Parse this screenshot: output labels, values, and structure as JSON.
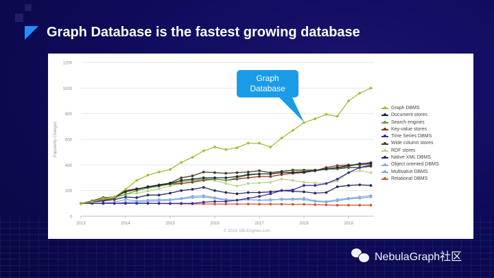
{
  "slide": {
    "title": "Graph Database is the fastest growing database"
  },
  "callout": {
    "line1": "Graph",
    "line2": "Database"
  },
  "watermark": {
    "text": "NebulaGraph社区"
  },
  "chart_data": {
    "type": "line",
    "title": "",
    "xlabel": "",
    "ylabel": "Popularity Changes",
    "credit": "© 2019, DB-Engines.com",
    "xlim": [
      2013,
      2019.55
    ],
    "ylim": [
      0,
      1200
    ],
    "xticks": [
      "2013",
      "2014",
      "2015",
      "2016",
      "2017",
      "2018",
      "2019"
    ],
    "yticks": [
      "0",
      "200",
      "400",
      "600",
      "800",
      "1000",
      "1200"
    ],
    "grid": true,
    "legend_position": "right",
    "x": [
      2013,
      2013.25,
      2013.5,
      2013.75,
      2014,
      2014.25,
      2014.5,
      2014.75,
      2015,
      2015.25,
      2015.5,
      2015.75,
      2016,
      2016.25,
      2016.5,
      2016.75,
      2017,
      2017.25,
      2017.5,
      2017.75,
      2018,
      2018.25,
      2018.5,
      2018.75,
      2019,
      2019.25,
      2019.5
    ],
    "series": [
      {
        "name": "Graph DBMS",
        "color": "#9fc037",
        "values": [
          100,
          115,
          140,
          150,
          210,
          280,
          320,
          345,
          365,
          420,
          460,
          510,
          540,
          520,
          535,
          570,
          570,
          540,
          610,
          670,
          730,
          760,
          795,
          780,
          900,
          960,
          1000
        ]
      },
      {
        "name": "Document stores",
        "color": "#1c2a3c",
        "values": [
          100,
          120,
          145,
          150,
          190,
          210,
          230,
          240,
          255,
          280,
          290,
          300,
          300,
          300,
          310,
          325,
          330,
          330,
          340,
          340,
          345,
          355,
          370,
          380,
          395,
          410,
          415
        ]
      },
      {
        "name": "Search engines",
        "color": "#5fa043",
        "values": [
          100,
          115,
          135,
          150,
          170,
          200,
          220,
          235,
          250,
          270,
          280,
          290,
          290,
          280,
          300,
          320,
          330,
          330,
          340,
          345,
          350,
          355,
          365,
          375,
          390,
          405,
          420
        ]
      },
      {
        "name": "Key-value stores",
        "color": "#8b2f1f",
        "values": [
          100,
          110,
          125,
          140,
          200,
          215,
          225,
          240,
          250,
          255,
          265,
          280,
          290,
          280,
          290,
          300,
          310,
          310,
          325,
          335,
          340,
          355,
          380,
          395,
          400,
          400,
          410
        ]
      },
      {
        "name": "Time Series DBMS",
        "color": "#3b2b9c",
        "values": [
          100,
          100,
          100,
          100,
          100,
          100,
          100,
          100,
          100,
          100,
          100,
          110,
          115,
          115,
          125,
          140,
          155,
          175,
          200,
          205,
          240,
          240,
          255,
          290,
          340,
          380,
          400
        ]
      },
      {
        "name": "Wide column stores",
        "color": "#4a3a18",
        "values": [
          100,
          115,
          140,
          150,
          200,
          210,
          230,
          245,
          260,
          300,
          315,
          345,
          340,
          335,
          340,
          345,
          355,
          340,
          350,
          360,
          360,
          360,
          365,
          370,
          380,
          380,
          390
        ]
      },
      {
        "name": "RDF stores",
        "color": "#b8d48a",
        "values": [
          100,
          110,
          130,
          140,
          170,
          180,
          195,
          215,
          235,
          255,
          270,
          290,
          280,
          255,
          235,
          255,
          260,
          265,
          290,
          280,
          265,
          260,
          255,
          275,
          340,
          355,
          340
        ]
      },
      {
        "name": "Native XML DBMS",
        "color": "#2a2a5e",
        "values": [
          100,
          110,
          120,
          130,
          150,
          145,
          165,
          165,
          180,
          200,
          210,
          225,
          200,
          185,
          175,
          185,
          185,
          190,
          200,
          195,
          190,
          180,
          185,
          230,
          240,
          245,
          240
        ]
      },
      {
        "name": "Object oriented DBMS",
        "color": "#8fa8e0",
        "values": [
          100,
          100,
          105,
          110,
          130,
          120,
          125,
          130,
          130,
          140,
          155,
          160,
          145,
          130,
          125,
          130,
          125,
          125,
          135,
          135,
          140,
          120,
          115,
          130,
          140,
          150,
          160
        ]
      },
      {
        "name": "Multivalue DBMS",
        "color": "#7fb0d8",
        "values": [
          100,
          100,
          100,
          100,
          110,
          110,
          115,
          120,
          125,
          135,
          145,
          150,
          140,
          125,
          125,
          130,
          125,
          130,
          130,
          130,
          130,
          115,
          110,
          120,
          135,
          140,
          150
        ]
      },
      {
        "name": "Relational DBMS",
        "color": "#d0583a",
        "values": [
          100,
          100,
          100,
          100,
          100,
          100,
          100,
          99,
          98,
          97,
          96,
          96,
          95,
          95,
          95,
          95,
          94,
          94,
          94,
          93,
          93,
          90,
          88,
          86,
          86,
          86,
          86
        ]
      }
    ]
  }
}
